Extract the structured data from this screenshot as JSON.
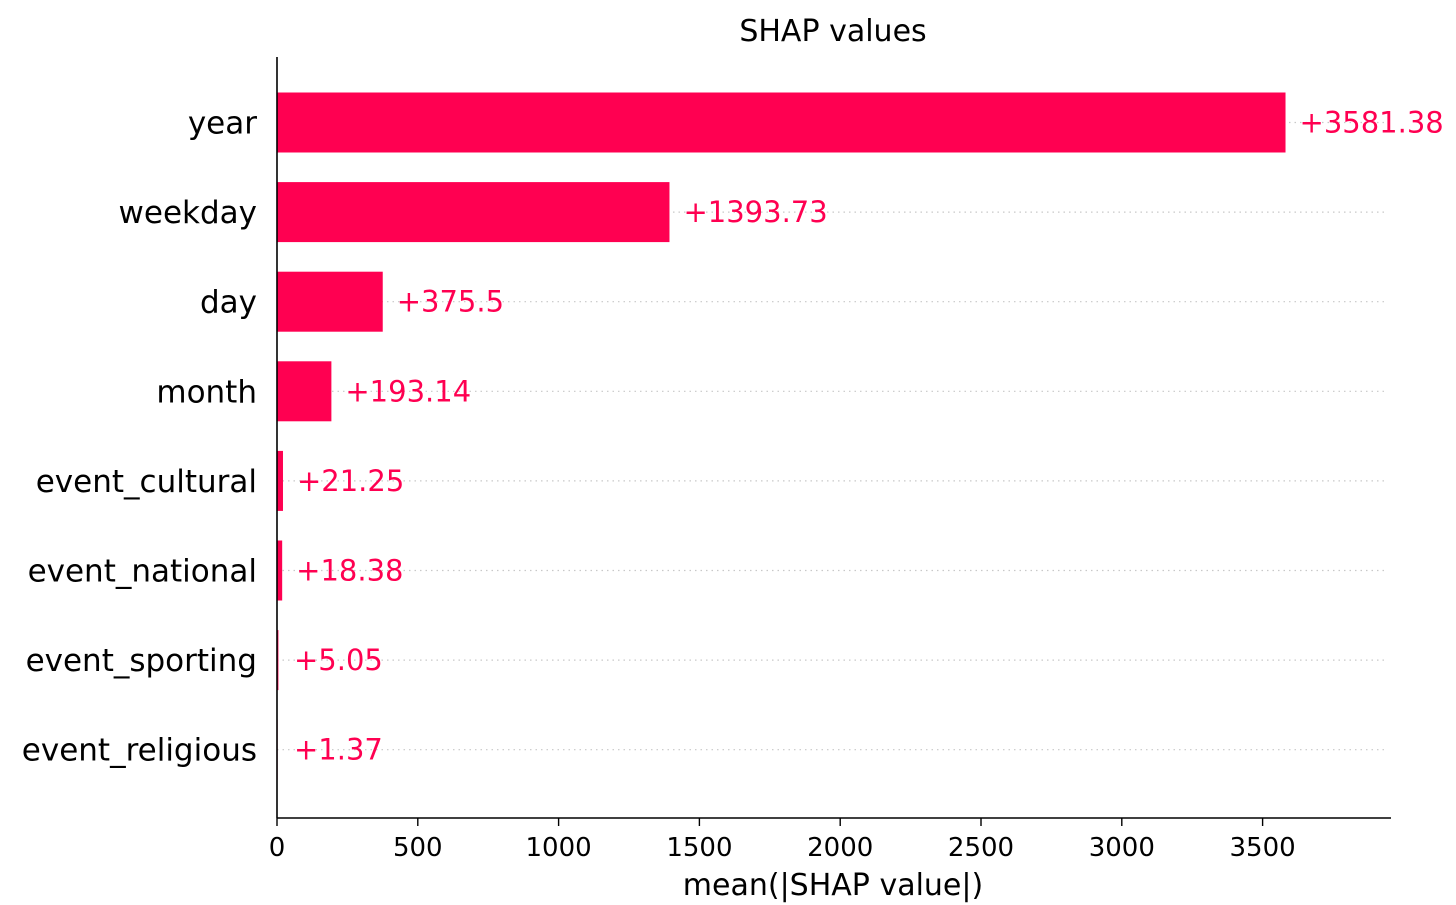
{
  "chart_data": {
    "type": "bar",
    "orientation": "horizontal",
    "title": "SHAP values",
    "xlabel": "mean(|SHAP value|)",
    "ylabel": "",
    "categories": [
      "year",
      "weekday",
      "day",
      "month",
      "event_cultural",
      "event_national",
      "event_sporting",
      "event_religious"
    ],
    "values": [
      3581.38,
      1393.73,
      375.5,
      193.14,
      21.25,
      18.38,
      5.05,
      1.37
    ],
    "value_labels": [
      "+3581.38",
      "+1393.73",
      "+375.5",
      "+193.14",
      "+21.25",
      "+18.38",
      "+5.05",
      "+1.37"
    ],
    "xticks": [
      0,
      500,
      1000,
      1500,
      2000,
      2500,
      3000,
      3500
    ],
    "xtick_labels": [
      "0",
      "500",
      "1000",
      "1500",
      "2000",
      "2500",
      "3000",
      "3500"
    ],
    "xlim": [
      0,
      3950
    ],
    "grid": "dotted horizontal guide lines",
    "bar_color": "#ff0051"
  }
}
